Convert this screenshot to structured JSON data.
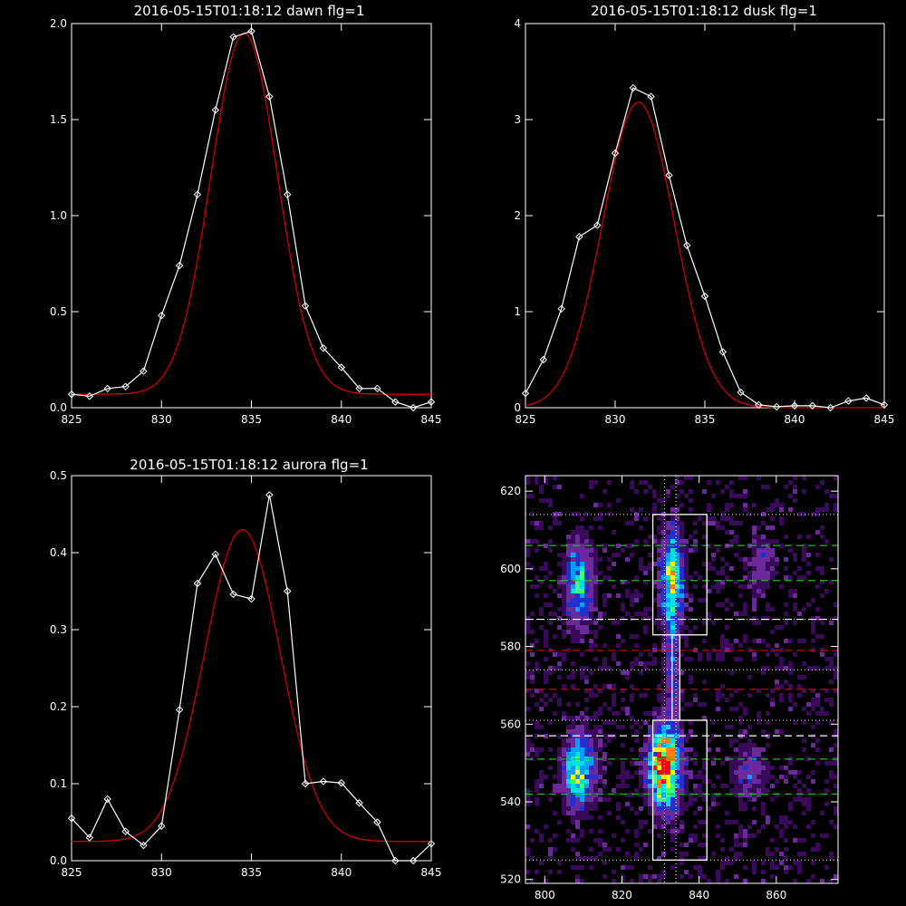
{
  "chart_data": [
    {
      "type": "line",
      "title": "2016-05-15T01:18:12 dawn flg=1",
      "xlim": [
        825,
        845
      ],
      "ylim": [
        0,
        2.0
      ],
      "xticks": [
        825,
        830,
        835,
        840,
        845
      ],
      "xtick_labels": [
        "825",
        "830",
        "835",
        "840",
        "845"
      ],
      "yticks": [
        0,
        0.5,
        1.0,
        1.5,
        2.0
      ],
      "ytick_labels": [
        "0.0",
        "0.5",
        "1.0",
        "1.5",
        "2.0"
      ],
      "series": [
        {
          "style": "data-with-diamond-markers",
          "color": "#ffffff",
          "x": [
            825,
            826,
            827,
            828,
            829,
            830,
            831,
            832,
            833,
            834,
            835,
            836,
            837,
            838,
            839,
            840,
            841,
            842,
            843,
            844,
            845
          ],
          "y": [
            0.07,
            0.06,
            0.1,
            0.11,
            0.19,
            0.48,
            0.74,
            1.11,
            1.55,
            1.93,
            1.96,
            1.62,
            1.11,
            0.53,
            0.31,
            0.21,
            0.1,
            0.1,
            0.03,
            0.0,
            0.03
          ]
        },
        {
          "style": "gaussian-fit",
          "color": "#d00000",
          "amplitude": 1.88,
          "center": 834.6,
          "sigma": 1.85,
          "baseline": 0.07
        }
      ]
    },
    {
      "type": "line",
      "title": "2016-05-15T01:18:12 dusk flg=1",
      "xlim": [
        825,
        845
      ],
      "ylim": [
        0,
        4
      ],
      "xticks": [
        825,
        830,
        835,
        840,
        845
      ],
      "xtick_labels": [
        "825",
        "830",
        "835",
        "840",
        "845"
      ],
      "yticks": [
        0,
        1,
        2,
        3,
        4
      ],
      "ytick_labels": [
        "0",
        "1",
        "2",
        "3",
        "4"
      ],
      "series": [
        {
          "style": "data-with-diamond-markers",
          "color": "#ffffff",
          "x": [
            825,
            826,
            827,
            828,
            829,
            830,
            831,
            832,
            833,
            834,
            835,
            836,
            837,
            838,
            839,
            840,
            841,
            842,
            843,
            844,
            845
          ],
          "y": [
            0.15,
            0.5,
            1.03,
            1.78,
            1.9,
            2.65,
            3.33,
            3.24,
            2.42,
            1.69,
            1.16,
            0.58,
            0.16,
            0.03,
            0.01,
            0.02,
            0.02,
            0.0,
            0.07,
            0.1,
            0.03
          ]
        },
        {
          "style": "gaussian-fit",
          "color": "#d00000",
          "amplitude": 3.18,
          "center": 831.3,
          "sigma": 2.0,
          "baseline": 0.0
        }
      ]
    },
    {
      "type": "line",
      "title": "2016-05-15T01:18:12 aurora flg=1",
      "xlim": [
        825,
        845
      ],
      "ylim": [
        0,
        0.5
      ],
      "xticks": [
        825,
        830,
        835,
        840,
        845
      ],
      "xtick_labels": [
        "825",
        "830",
        "835",
        "840",
        "845"
      ],
      "yticks": [
        0,
        0.1,
        0.2,
        0.3,
        0.4,
        0.5
      ],
      "ytick_labels": [
        "0.0",
        "0.1",
        "0.2",
        "0.3",
        "0.4",
        "0.5"
      ],
      "series": [
        {
          "style": "data-with-diamond-markers",
          "color": "#ffffff",
          "x": [
            825,
            826,
            827,
            828,
            829,
            830,
            831,
            832,
            833,
            834,
            835,
            836,
            837,
            838,
            839,
            840,
            841,
            842,
            843,
            844,
            845
          ],
          "y": [
            0.055,
            0.03,
            0.08,
            0.038,
            0.02,
            0.045,
            0.196,
            0.36,
            0.398,
            0.346,
            0.34,
            0.475,
            0.35,
            0.1,
            0.103,
            0.101,
            0.075,
            0.05,
            0.0,
            0.0,
            0.022
          ]
        },
        {
          "style": "gaussian-fit",
          "color": "#d00000",
          "amplitude": 0.405,
          "center": 834.5,
          "sigma": 2.1,
          "baseline": 0.025
        }
      ]
    },
    {
      "type": "heatmap",
      "xlim": [
        795,
        876
      ],
      "ylim": [
        519,
        624
      ],
      "xticks": [
        800,
        820,
        840,
        860
      ],
      "xtick_labels": [
        "800",
        "820",
        "840",
        "860"
      ],
      "yticks": [
        520,
        540,
        560,
        580,
        600,
        620
      ],
      "ytick_labels": [
        "520",
        "540",
        "560",
        "580",
        "600",
        "620"
      ],
      "colormap": [
        "#3a0a5a",
        "#6a2a9a",
        "#2030d0",
        "#00a0ff",
        "#00e0e0",
        "#40ff80",
        "#ffff00",
        "#ff8000",
        "#ff0000"
      ],
      "bright_regions": [
        {
          "x": 809,
          "y": 548,
          "sx": 2.6,
          "sy": 5.5,
          "intensity": 0.6
        },
        {
          "x": 809,
          "y": 596,
          "sx": 2.4,
          "sy": 7.0,
          "intensity": 0.4
        },
        {
          "x": 831,
          "y": 549,
          "sx": 2.6,
          "sy": 6.5,
          "intensity": 0.95
        },
        {
          "x": 833,
          "y": 597,
          "sx": 1.8,
          "sy": 8.0,
          "intensity": 0.6
        },
        {
          "x": 833,
          "y": 573,
          "sx": 1.2,
          "sy": 11.0,
          "intensity": 0.22
        },
        {
          "x": 853,
          "y": 547,
          "sx": 3.0,
          "sy": 5.0,
          "intensity": 0.18
        },
        {
          "x": 856,
          "y": 601,
          "sx": 2.5,
          "sy": 5.0,
          "intensity": 0.15
        }
      ],
      "vertical_dotted_lines_x": [
        831,
        834
      ],
      "horizontal_dotted_lines_y": [
        525,
        561,
        574,
        587,
        614
      ],
      "horizontal_dashed_lines": [
        {
          "y": 606,
          "color": "#20c020"
        },
        {
          "y": 597,
          "color": "#20c020"
        },
        {
          "y": 587,
          "color": "#ffffff"
        },
        {
          "y": 579,
          "color": "#d00000"
        },
        {
          "y": 569,
          "color": "#d00000"
        },
        {
          "y": 557,
          "color": "#ffffff"
        },
        {
          "y": 551,
          "color": "#20c020"
        },
        {
          "y": 542,
          "color": "#20c020"
        }
      ],
      "boxes": [
        {
          "x0": 828,
          "x1": 842,
          "y0": 583,
          "y1": 614
        },
        {
          "x0": 828,
          "x1": 842,
          "y0": 525,
          "y1": 561
        },
        {
          "x0": 833,
          "x1": 835,
          "y0": 561,
          "y1": 583
        }
      ]
    }
  ]
}
